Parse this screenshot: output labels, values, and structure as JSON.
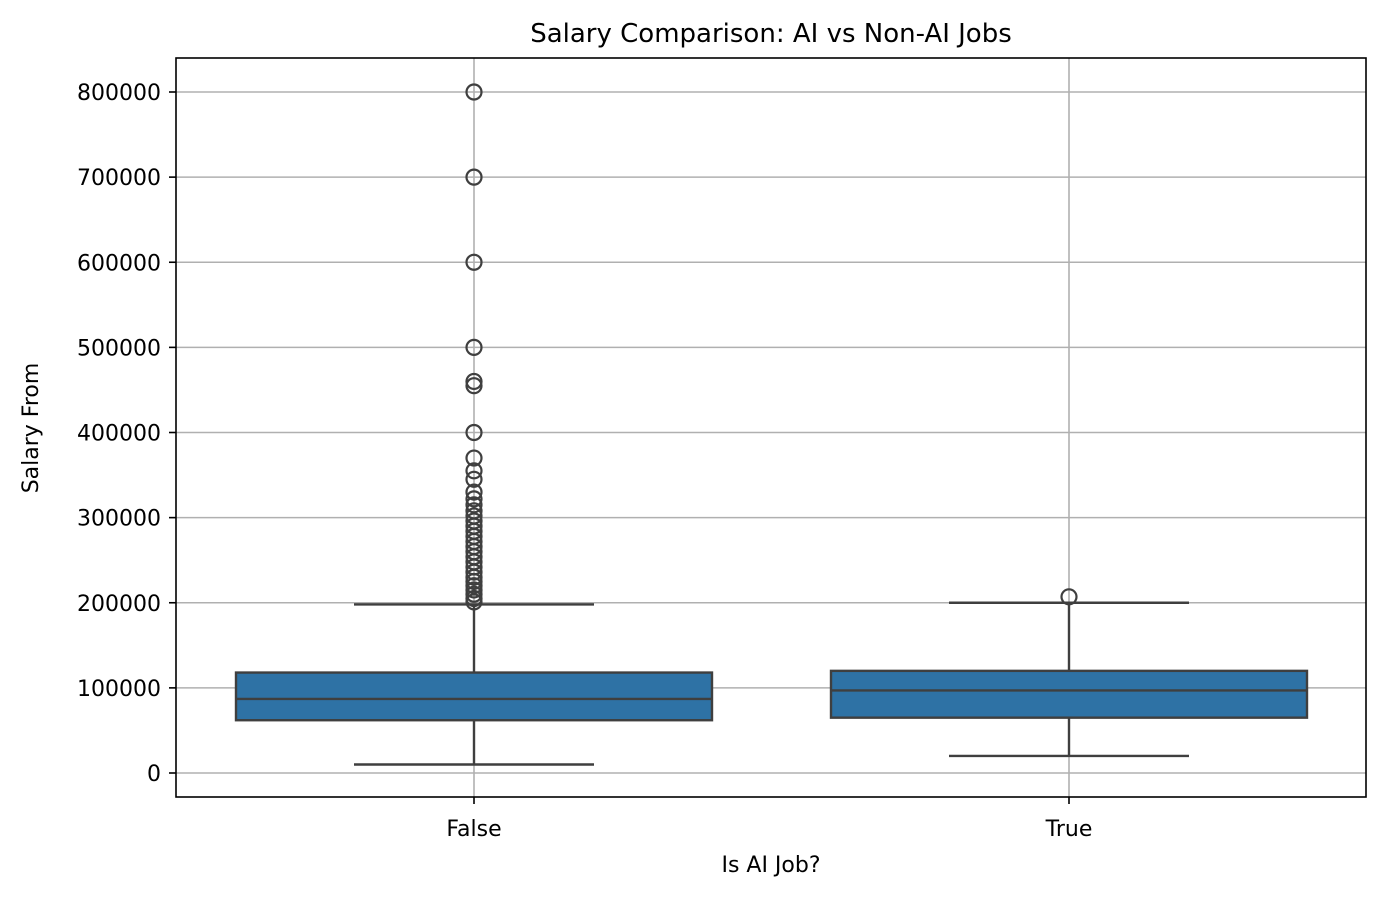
{
  "chart_data": {
    "type": "box",
    "title": "Salary Comparison: AI vs Non-AI Jobs",
    "xlabel": "Is AI Job?",
    "ylabel": "Salary From",
    "categories": [
      "False",
      "True"
    ],
    "ylim": [
      -30000,
      840000
    ],
    "yticks": [
      0,
      100000,
      200000,
      300000,
      400000,
      500000,
      600000,
      700000,
      800000
    ],
    "grid": true,
    "box_color": "#2e72a5",
    "edge_color": "#3f3f3f",
    "boxes": [
      {
        "category": "False",
        "whisker_low": 10000,
        "q1": 62000,
        "median": 87000,
        "q3": 118000,
        "whisker_high": 198000,
        "outliers": [
          800000,
          700000,
          600000,
          500000,
          460000,
          455000,
          400000,
          370000,
          355000,
          345000,
          330000,
          322000,
          315000,
          308000,
          302000,
          296000,
          290000,
          284000,
          278000,
          272000,
          266000,
          260000,
          254000,
          248000,
          242000,
          236000,
          230000,
          225000,
          220000,
          215000,
          210000,
          205000,
          201000
        ]
      },
      {
        "category": "True",
        "whisker_low": 20000,
        "q1": 65000,
        "median": 97000,
        "q3": 120000,
        "whisker_high": 200000,
        "outliers": [
          207000
        ]
      }
    ]
  }
}
